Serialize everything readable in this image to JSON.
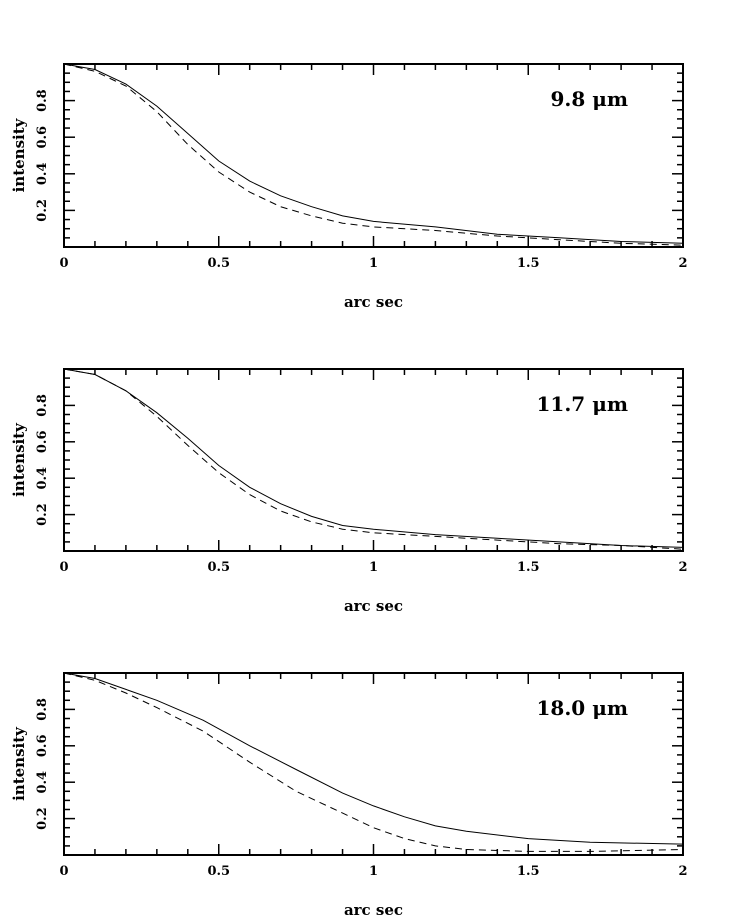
{
  "chart_data": [
    {
      "type": "line",
      "annotation": "9.8 μm",
      "xlabel": "arc sec",
      "ylabel": "intensity",
      "xlim": [
        0,
        2
      ],
      "ylim": [
        0,
        1
      ],
      "x_ticks": [
        "0",
        "0.5",
        "1",
        "1.5",
        "2"
      ],
      "y_ticks": [
        "0.2",
        "0.4",
        "0.6",
        "0.8"
      ],
      "grid": false,
      "series": [
        {
          "style": "solid",
          "x": [
            0,
            0.1,
            0.2,
            0.3,
            0.4,
            0.5,
            0.6,
            0.7,
            0.8,
            0.9,
            1.0,
            1.2,
            1.4,
            1.6,
            1.8,
            2.0
          ],
          "values": [
            1.0,
            0.97,
            0.89,
            0.77,
            0.62,
            0.47,
            0.36,
            0.28,
            0.22,
            0.17,
            0.14,
            0.11,
            0.07,
            0.05,
            0.03,
            0.02
          ]
        },
        {
          "style": "dashed",
          "x": [
            0,
            0.1,
            0.2,
            0.3,
            0.4,
            0.5,
            0.6,
            0.7,
            0.8,
            0.9,
            1.0,
            1.2,
            1.4,
            1.6,
            1.8,
            2.0
          ],
          "values": [
            1.0,
            0.96,
            0.88,
            0.74,
            0.56,
            0.41,
            0.3,
            0.22,
            0.17,
            0.13,
            0.11,
            0.09,
            0.06,
            0.04,
            0.02,
            0.01
          ]
        }
      ]
    },
    {
      "type": "line",
      "annotation": "11.7 μm",
      "xlabel": "arc sec",
      "ylabel": "intensity",
      "xlim": [
        0,
        2
      ],
      "ylim": [
        0,
        1
      ],
      "x_ticks": [
        "0",
        "0.5",
        "1",
        "1.5",
        "2"
      ],
      "y_ticks": [
        "0.2",
        "0.4",
        "0.6",
        "0.8"
      ],
      "grid": false,
      "series": [
        {
          "style": "solid",
          "x": [
            0,
            0.1,
            0.2,
            0.3,
            0.4,
            0.5,
            0.6,
            0.7,
            0.8,
            0.9,
            1.0,
            1.2,
            1.4,
            1.6,
            1.8,
            2.0
          ],
          "values": [
            1.0,
            0.97,
            0.88,
            0.76,
            0.62,
            0.47,
            0.35,
            0.26,
            0.19,
            0.14,
            0.12,
            0.09,
            0.07,
            0.05,
            0.03,
            0.02
          ]
        },
        {
          "style": "dashed",
          "x": [
            0,
            0.1,
            0.2,
            0.3,
            0.4,
            0.5,
            0.6,
            0.7,
            0.8,
            0.9,
            1.0,
            1.2,
            1.4,
            1.6,
            1.8,
            2.0
          ],
          "values": [
            1.0,
            0.97,
            0.88,
            0.74,
            0.58,
            0.43,
            0.31,
            0.22,
            0.16,
            0.12,
            0.1,
            0.08,
            0.06,
            0.04,
            0.03,
            0.01
          ]
        }
      ]
    },
    {
      "type": "line",
      "annotation": "18.0 μm",
      "xlabel": "arc sec",
      "ylabel": "intensity",
      "xlim": [
        0,
        2
      ],
      "ylim": [
        0,
        1
      ],
      "x_ticks": [
        "0",
        "0.5",
        "1",
        "1.5",
        "2"
      ],
      "y_ticks": [
        "0.2",
        "0.4",
        "0.6",
        "0.8"
      ],
      "grid": false,
      "series": [
        {
          "style": "solid",
          "x": [
            0,
            0.1,
            0.2,
            0.3,
            0.45,
            0.6,
            0.75,
            0.9,
            1.0,
            1.1,
            1.2,
            1.3,
            1.5,
            1.7,
            2.0
          ],
          "values": [
            1.0,
            0.97,
            0.91,
            0.85,
            0.74,
            0.6,
            0.47,
            0.34,
            0.27,
            0.21,
            0.16,
            0.13,
            0.09,
            0.07,
            0.06
          ]
        },
        {
          "style": "dashed",
          "x": [
            0,
            0.1,
            0.2,
            0.3,
            0.45,
            0.6,
            0.75,
            0.9,
            1.0,
            1.1,
            1.2,
            1.3,
            1.5,
            1.7,
            2.0
          ],
          "values": [
            1.0,
            0.96,
            0.89,
            0.81,
            0.68,
            0.51,
            0.35,
            0.23,
            0.15,
            0.09,
            0.05,
            0.03,
            0.02,
            0.02,
            0.03
          ]
        }
      ]
    }
  ]
}
